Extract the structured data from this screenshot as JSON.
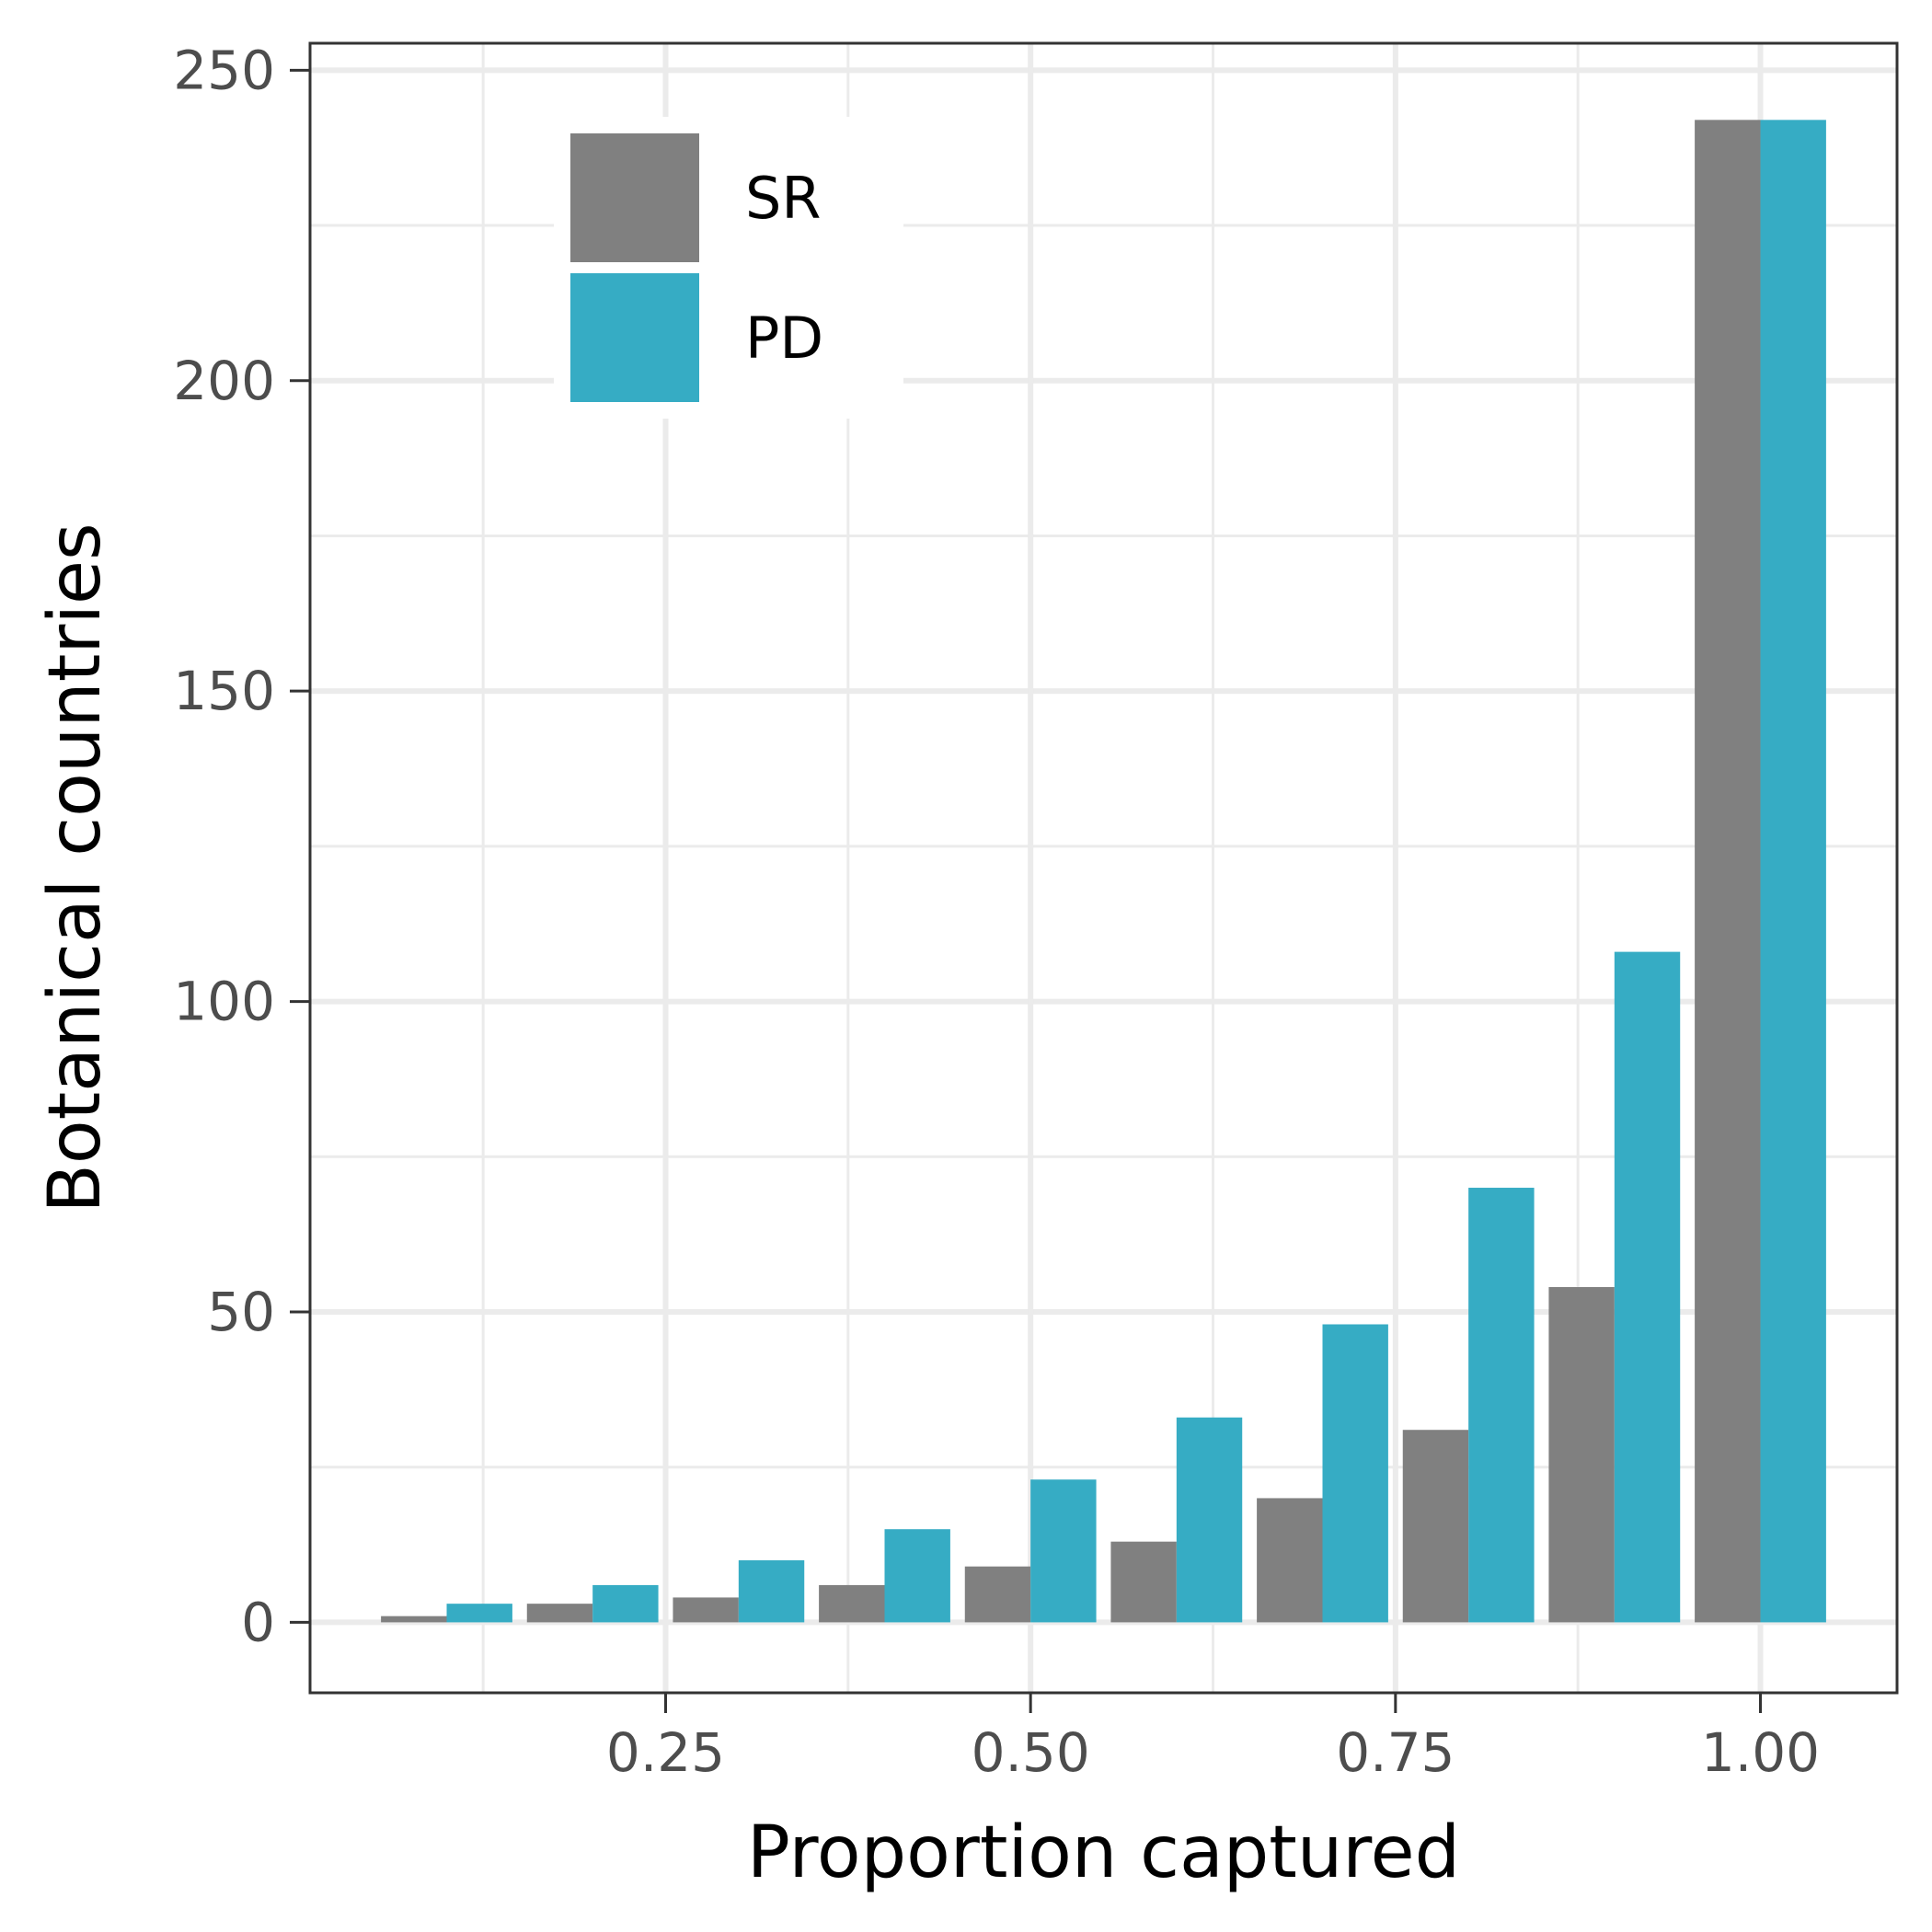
{
  "chart_data": {
    "type": "bar",
    "xlabel": "Proportion captured",
    "ylabel": "Botanical countries",
    "x_tick_labels": [
      "0.25",
      "0.50",
      "0.75",
      "1.00"
    ],
    "x_tick_values": [
      0.25,
      0.5,
      0.75,
      1.0
    ],
    "y_tick_labels": [
      "0",
      "50",
      "100",
      "150",
      "200",
      "250"
    ],
    "y_tick_values": [
      0,
      50,
      100,
      150,
      200,
      250
    ],
    "xlim": [
      0.0064,
      1.0936
    ],
    "ylim": [
      -11.35,
      254.35
    ],
    "bin_centers": [
      0.1,
      0.2,
      0.3,
      0.4,
      0.5,
      0.6,
      0.7,
      0.8,
      0.9,
      1.0
    ],
    "bin_width": 0.1,
    "grid": true,
    "legend_position": "top-left",
    "series": [
      {
        "name": "SR",
        "color": "#808080",
        "values": [
          1,
          3,
          4,
          6,
          9,
          13,
          20,
          31,
          54,
          242
        ]
      },
      {
        "name": "PD",
        "color": "#36acc4",
        "values": [
          3,
          6,
          10,
          15,
          23,
          33,
          48,
          70,
          108,
          242
        ]
      }
    ]
  }
}
